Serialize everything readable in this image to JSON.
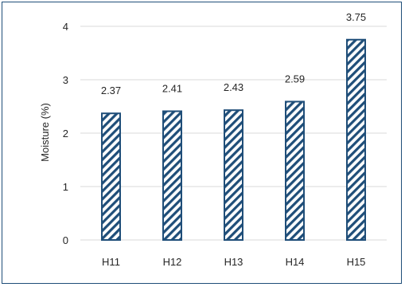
{
  "chart_data": {
    "type": "bar",
    "title": "",
    "xlabel": "",
    "ylabel": "Moisture (%)",
    "categories": [
      "H11",
      "H12",
      "H13",
      "H14",
      "H15"
    ],
    "values": [
      2.37,
      2.41,
      2.43,
      2.59,
      3.75
    ],
    "data_labels": [
      "2.37",
      "2.41",
      "2.43",
      "2.59",
      "3.75"
    ],
    "ylim": [
      0,
      4
    ],
    "yticks": [
      "0",
      "1",
      "2",
      "3",
      "4"
    ],
    "grid": true,
    "legend": "none",
    "bar_pattern": "diagonal-hatch",
    "colors": {
      "bar": "#1f4e79",
      "hatch_bg": "#ffffff",
      "grid": "#d9d9d9",
      "frame": "#1f4e79"
    }
  }
}
